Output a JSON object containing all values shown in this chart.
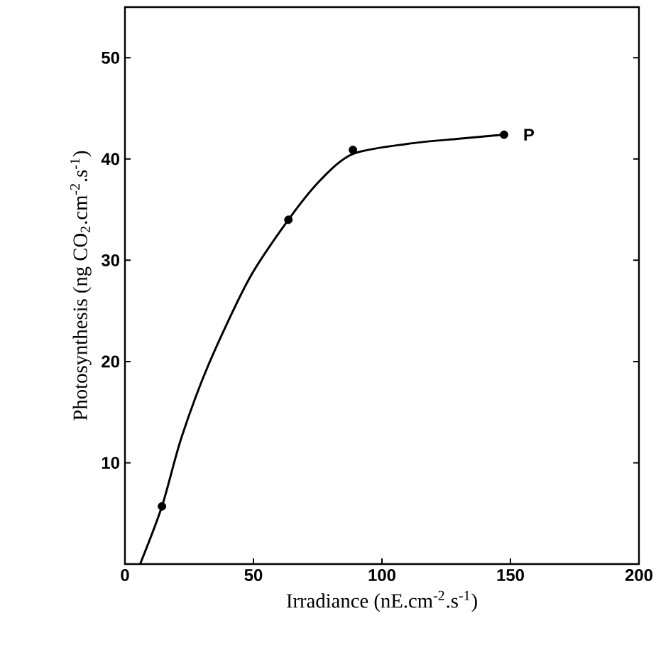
{
  "chart_data": {
    "type": "line",
    "xlabel": "Irradiance (nE.cm$^{-2}$.s$^{-1}$)",
    "ylabel": "Photosynthesis (ng CO$_{2}$.cm$^{-2}$.s$^{-1}$)",
    "xlim": [
      0,
      200
    ],
    "ylim": [
      0,
      55
    ],
    "xticks": [
      0,
      50,
      100,
      150,
      200
    ],
    "yticks": [
      10,
      20,
      30,
      40,
      50
    ],
    "series": [
      {
        "color": "#000000",
        "marker": "none",
        "x": [
          5.9,
          14.4,
          22,
          32.7,
          48.4,
          63.6,
          76,
          88.7,
          110,
          130,
          147.5
        ],
        "values": [
          0,
          5.7,
          12.5,
          19.8,
          28.2,
          34.0,
          37.9,
          40.5,
          41.5,
          42.0,
          42.4
        ]
      },
      {
        "type": "scatter",
        "color": "#000000",
        "marker": "circle",
        "x": [
          14.4,
          63.6,
          88.7,
          147.5
        ],
        "values": [
          5.7,
          34.0,
          40.9,
          42.4
        ]
      }
    ],
    "annotations": [
      {
        "text": "P",
        "x": 147.5,
        "y": 42.4
      }
    ]
  }
}
